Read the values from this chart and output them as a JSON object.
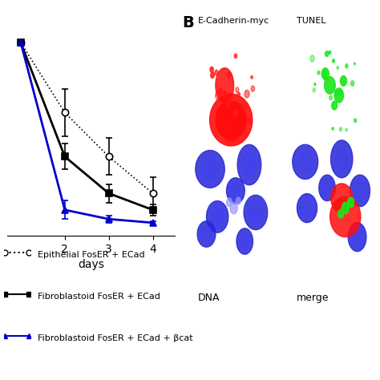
{
  "title": "",
  "xlabel": "days",
  "ylabel": "",
  "xlim": [
    0.7,
    4.5
  ],
  "ylim": [
    -0.05,
    1.15
  ],
  "yticks": [],
  "xticks": [
    2,
    3,
    4
  ],
  "series": [
    {
      "label": "Epithelial FosER + ECad",
      "color": "#000000",
      "linestyle": "dotted",
      "marker": "o",
      "markerfacecolor": "white",
      "markeredgecolor": "#000000",
      "linewidth": 1.2,
      "markersize": 6,
      "x": [
        1,
        2,
        3,
        4
      ],
      "y": [
        1.0,
        0.62,
        0.38,
        0.18
      ],
      "yerr": [
        0.0,
        0.13,
        0.1,
        0.09
      ]
    },
    {
      "label": "Fibroblastoid FosER + ECad",
      "color": "#000000",
      "linestyle": "solid",
      "marker": "s",
      "markerfacecolor": "#000000",
      "markeredgecolor": "#000000",
      "linewidth": 2.0,
      "markersize": 6,
      "x": [
        1,
        2,
        3,
        4
      ],
      "y": [
        1.0,
        0.38,
        0.18,
        0.09
      ],
      "yerr": [
        0.0,
        0.07,
        0.05,
        0.03
      ]
    },
    {
      "label": "Fibroblastoid FosER + ECad + βcat",
      "color": "#0000cc",
      "linestyle": "solid",
      "marker": "^",
      "markerfacecolor": "#0000cc",
      "markeredgecolor": "#0000cc",
      "linewidth": 2.0,
      "markersize": 6,
      "x": [
        1,
        2,
        3,
        4
      ],
      "y": [
        1.0,
        0.09,
        0.04,
        0.02
      ],
      "yerr": [
        0.0,
        0.05,
        0.02,
        0.01
      ]
    }
  ],
  "legend_labels": [
    "Epithelial FosER + ECad",
    "Fibroblastoid FosER + ECad",
    "Fibroblastoid FosER + ECad + βcat"
  ],
  "legend_colors": [
    "#000000",
    "#000000",
    "#0000cc"
  ],
  "legend_linestyles": [
    "dotted",
    "solid",
    "solid"
  ],
  "legend_markers": [
    "o",
    "s",
    "^"
  ],
  "legend_markerfacecolors": [
    "white",
    "#000000",
    "#0000cc"
  ],
  "background_color": "#ffffff",
  "figure_width": 4.74,
  "figure_height": 4.74,
  "dpi": 100,
  "panel_b_label": "B",
  "img_label1": "E-Cadherin-myc",
  "img_label2": "TUNEL",
  "img_label3": "DNA",
  "img_label4": "merge"
}
